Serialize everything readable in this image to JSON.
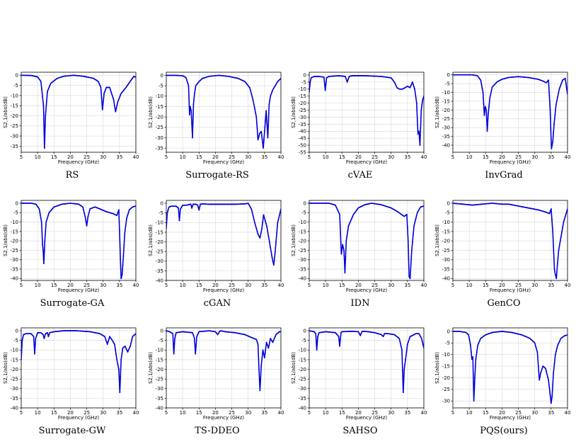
{
  "chart_data": [
    {
      "name": "RS",
      "type": "line",
      "ylabel": "S2,1/abs(dB)",
      "xlabel": "Frequency (GHz)",
      "xlim": [
        5,
        40
      ],
      "ylim": [
        -38,
        1.5
      ],
      "xticks": [
        5,
        10,
        15,
        20,
        25,
        30,
        35,
        40
      ],
      "yticks": [
        0,
        -5,
        -10,
        -15,
        -20,
        -25,
        -30,
        -35
      ],
      "grid": true,
      "color": "#0000dd",
      "x": [
        5,
        8,
        10,
        11,
        11.8,
        12.1,
        12.4,
        13,
        14,
        16,
        18,
        21,
        24,
        27,
        28.5,
        29.3,
        29.8,
        30.3,
        31,
        32,
        33.2,
        33.8,
        34.5,
        35.5,
        37,
        38.5,
        39.4,
        40
      ],
      "y": [
        0,
        -0.1,
        -0.8,
        -3,
        -15,
        -36,
        -20,
        -8,
        -4,
        -1.5,
        -0.5,
        0,
        -0.5,
        -1.5,
        -3,
        -6,
        -17,
        -9,
        -6,
        -6,
        -12,
        -18,
        -13,
        -9,
        -6,
        -2.5,
        -0.5,
        -1
      ]
    },
    {
      "name": "Surrogate-RS",
      "type": "line",
      "ylabel": "S2,1/abs(dB)",
      "xlabel": "Frequency (GHz)",
      "xlim": [
        5,
        40
      ],
      "ylim": [
        -37,
        1.5
      ],
      "xticks": [
        5,
        10,
        15,
        20,
        25,
        30,
        35,
        40
      ],
      "yticks": [
        0,
        -5,
        -10,
        -15,
        -20,
        -25,
        -30,
        -35
      ],
      "grid": true,
      "color": "#0000dd",
      "x": [
        5,
        8,
        10,
        11,
        11.8,
        12.1,
        12.3,
        12.6,
        13,
        13.3,
        13.6,
        14,
        15,
        16,
        18,
        21,
        24,
        27,
        29,
        30.5,
        31.5,
        32.5,
        33,
        33.5,
        34,
        34.6,
        35,
        35.5,
        36,
        36.4,
        36.8,
        37.5,
        39,
        40
      ],
      "y": [
        0,
        0,
        -0.2,
        -1,
        -5,
        -19,
        -15,
        -17,
        -30,
        -14,
        -9,
        -5,
        -3,
        -1.5,
        -0.5,
        0,
        -0.5,
        -1.5,
        -3,
        -6,
        -12,
        -20,
        -31,
        -28,
        -27,
        -35,
        -27,
        -17,
        -30,
        -14,
        -10,
        -7,
        -3,
        -1.5
      ]
    },
    {
      "name": "cVAE",
      "type": "line",
      "ylabel": "S2,1/abs(dB)",
      "xlabel": "Frequency (GHz)",
      "xlim": [
        5,
        40
      ],
      "ylim": [
        -55,
        2
      ],
      "xticks": [
        5,
        10,
        15,
        20,
        25,
        30,
        35,
        40
      ],
      "yticks": [
        0,
        -5,
        -10,
        -15,
        -20,
        -25,
        -30,
        -35,
        -40,
        -45,
        -50,
        -55
      ],
      "grid": true,
      "color": "#0000dd",
      "x": [
        5,
        5.3,
        5.6,
        6.5,
        8,
        9.5,
        9.9,
        10.3,
        11,
        14,
        16,
        16.6,
        17.2,
        18,
        22,
        27,
        30,
        31,
        31.8,
        32.5,
        33.5,
        35,
        35.8,
        36.5,
        37.2,
        37.8,
        38.2,
        38.5,
        38.8,
        39.2,
        39.6,
        40
      ],
      "y": [
        -12,
        -5,
        -2,
        -1,
        -1,
        -1.5,
        -11,
        -2,
        -1,
        -0.5,
        -1,
        -5,
        -1,
        -0.5,
        -0.5,
        -1,
        -2,
        -5,
        -9,
        -10,
        -10,
        -8,
        -9,
        -5,
        -10,
        -20,
        -42,
        -40,
        -50,
        -25,
        -18,
        -15
      ]
    },
    {
      "name": "InvGrad",
      "type": "line",
      "ylabel": "S2,1/abs(dB)",
      "xlabel": "Frequency (GHz)",
      "xlim": [
        5,
        40
      ],
      "ylim": [
        -44,
        1.5
      ],
      "xticks": [
        5,
        10,
        15,
        20,
        25,
        30,
        35,
        40
      ],
      "yticks": [
        0,
        -5,
        -10,
        -15,
        -20,
        -25,
        -30,
        -35,
        -40
      ],
      "grid": true,
      "color": "#0000dd",
      "x": [
        5,
        8,
        11,
        12.5,
        13.5,
        14.2,
        14.6,
        14.9,
        15.2,
        15.5,
        15.8,
        16.3,
        17,
        18.5,
        20,
        22,
        25,
        28,
        31,
        32.5,
        33.5,
        34.2,
        34.7,
        35.1,
        35.5,
        35.9,
        36.5,
        37.5,
        38.5,
        39.3,
        40
      ],
      "y": [
        0,
        0,
        0,
        -0.5,
        -3,
        -10,
        -23,
        -18,
        -20,
        -32,
        -22,
        -13,
        -7,
        -4,
        -2.5,
        -1.5,
        -1,
        -1.5,
        -2.5,
        -3.5,
        -4.5,
        -3,
        -20,
        -42,
        -38,
        -28,
        -17,
        -8,
        -3,
        -2,
        -11
      ]
    },
    {
      "name": "Surrogate-GA",
      "type": "line",
      "ylabel": "S2,1/abs(dB)",
      "xlabel": "Frequency (GHz)",
      "xlim": [
        5,
        40
      ],
      "ylim": [
        -41,
        1.5
      ],
      "xticks": [
        5,
        10,
        15,
        20,
        25,
        30,
        35,
        40
      ],
      "yticks": [
        0,
        -5,
        -10,
        -15,
        -20,
        -25,
        -30,
        -35,
        -40
      ],
      "grid": true,
      "color": "#0000dd",
      "x": [
        5,
        8,
        9.5,
        10.5,
        11.2,
        11.5,
        11.7,
        11.9,
        12.2,
        12.6,
        13.5,
        15,
        17.5,
        20,
        22.5,
        23.8,
        24.5,
        25,
        25.4,
        26,
        27.5,
        29,
        31,
        33,
        34.2,
        34.8,
        35.2,
        35.5,
        35.8,
        36.2,
        36.6,
        37.2,
        38,
        39,
        40
      ],
      "y": [
        0,
        0,
        -0.5,
        -3,
        -10,
        -22,
        -25,
        -32,
        -20,
        -10,
        -5,
        -2,
        -0.5,
        0,
        -0.5,
        -2,
        -7,
        -12,
        -7,
        -3,
        -2,
        -3,
        -4.5,
        -5.5,
        -6.5,
        -3.5,
        -25,
        -40,
        -38,
        -28,
        -16,
        -8,
        -3.5,
        -2,
        -1.5
      ]
    },
    {
      "name": "cGAN",
      "type": "line",
      "ylabel": "S2,1/abs(dB)",
      "xlabel": "Frequency (GHz)",
      "xlim": [
        5,
        40
      ],
      "ylim": [
        -40,
        1.5
      ],
      "xticks": [
        5,
        10,
        15,
        20,
        25,
        30,
        35,
        40
      ],
      "yticks": [
        0,
        -5,
        -10,
        -15,
        -20,
        -25,
        -30,
        -35,
        -40
      ],
      "grid": true,
      "color": "#0000dd",
      "x": [
        5,
        5.3,
        5.8,
        6.5,
        8,
        8.7,
        9,
        9.3,
        10,
        11,
        12.5,
        12.8,
        13.2,
        14,
        14.6,
        15,
        15.4,
        16,
        18,
        22,
        26,
        29,
        30,
        31,
        32,
        33,
        33.6,
        34.2,
        34.7,
        35.2,
        35.7,
        36.5,
        37.3,
        37.8,
        38.2,
        39,
        40
      ],
      "y": [
        -13,
        -5,
        -2,
        -1.5,
        -1.5,
        -2.5,
        -9,
        -3,
        -1,
        -1,
        -0.5,
        -2.5,
        -0.5,
        -0.5,
        -1,
        -3.5,
        -0.5,
        -0.3,
        -0.5,
        -0.5,
        -0.5,
        -0.3,
        0,
        -3,
        -10,
        -16,
        -18,
        -13,
        -6,
        -9,
        -12,
        -20,
        -28,
        -32,
        -26,
        -10,
        -3
      ]
    },
    {
      "name": "IDN",
      "type": "line",
      "ylabel": "S2,1/abs(dB)",
      "xlabel": "Frequency (GHz)",
      "xlim": [
        5,
        40
      ],
      "ylim": [
        -41,
        1.5
      ],
      "xticks": [
        5,
        10,
        15,
        20,
        25,
        30,
        35,
        40
      ],
      "yticks": [
        0,
        -5,
        -10,
        -15,
        -20,
        -25,
        -30,
        -35,
        -40
      ],
      "grid": true,
      "color": "#0000dd",
      "x": [
        5,
        8,
        11,
        13,
        14.3,
        14.8,
        15.2,
        15.6,
        15.9,
        16.3,
        17,
        18.5,
        20,
        22,
        24,
        27,
        30,
        32,
        34,
        34.8,
        35.2,
        35.5,
        35.8,
        36.3,
        37,
        38,
        39,
        40
      ],
      "y": [
        0,
        0,
        0,
        -1,
        -6,
        -27,
        -22,
        -25,
        -37,
        -20,
        -12,
        -6,
        -2.5,
        -0.8,
        0,
        -0.8,
        -2.5,
        -4.5,
        -7,
        -6,
        -20,
        -39,
        -40,
        -25,
        -12,
        -5,
        -2,
        -1.5
      ]
    },
    {
      "name": "GenCO",
      "type": "line",
      "ylabel": "S2,1/abs(dB)",
      "xlabel": "Frequency (GHz)",
      "xlim": [
        5,
        40
      ],
      "ylim": [
        -41,
        1.5
      ],
      "xticks": [
        5,
        10,
        15,
        20,
        25,
        30,
        35,
        40
      ],
      "yticks": [
        0,
        -5,
        -10,
        -15,
        -20,
        -25,
        -30,
        -35,
        -40
      ],
      "grid": true,
      "color": "#0000dd",
      "x": [
        5,
        8,
        11,
        14,
        17,
        20,
        22,
        25,
        28,
        31,
        33,
        34.5,
        35,
        35.5,
        36,
        36.3,
        36.6,
        36.9,
        37.3,
        38,
        38.8,
        40
      ],
      "y": [
        0,
        -0.5,
        -1,
        -0.5,
        0,
        -0.5,
        -0.5,
        -1.5,
        -2.5,
        -3.5,
        -4.5,
        -5.5,
        -3,
        -15,
        -35,
        -38,
        -40,
        -33,
        -25,
        -18,
        -10,
        -3
      ]
    },
    {
      "name": "Surrogate-GW",
      "type": "line",
      "ylabel": "S2,1/abs(dB)",
      "xlabel": "Frequency (GHz)",
      "xlim": [
        5,
        40
      ],
      "ylim": [
        -40,
        1.5
      ],
      "xticks": [
        5,
        10,
        15,
        20,
        25,
        30,
        35,
        40
      ],
      "yticks": [
        0,
        -5,
        -10,
        -15,
        -20,
        -25,
        -30,
        -35,
        -40
      ],
      "grid": true,
      "color": "#0000dd",
      "x": [
        5,
        5.3,
        5.7,
        6.5,
        8,
        8.8,
        9.1,
        9.4,
        10,
        11,
        11.7,
        12,
        12.4,
        13,
        13.3,
        13.7,
        15,
        18,
        22,
        26,
        29,
        30.5,
        31.3,
        32,
        32.8,
        33.5,
        34.2,
        34.8,
        35.1,
        35.5,
        36,
        36.7,
        37.5,
        38.3,
        39,
        40
      ],
      "y": [
        -15,
        -5,
        -2,
        -1.5,
        -1.5,
        -3,
        -12,
        -4,
        -1,
        -1,
        -2,
        -4,
        -1.5,
        -1,
        -3,
        -1,
        -0.5,
        0,
        0,
        -0.5,
        -1.5,
        -3,
        -7,
        -3,
        -5,
        -7,
        -15,
        -20,
        -32,
        -15,
        -9,
        -8,
        -11,
        -8,
        -3,
        -1.5
      ]
    },
    {
      "name": "TS-DDEO",
      "type": "line",
      "ylabel": "S2,1/abs(dB)",
      "xlabel": "Frequency (GHz)",
      "xlim": [
        5,
        40
      ],
      "ylim": [
        -40,
        1.5
      ],
      "xticks": [
        5,
        10,
        15,
        20,
        25,
        30,
        35,
        40
      ],
      "yticks": [
        0,
        -5,
        -10,
        -15,
        -20,
        -25,
        -30,
        -35,
        -40
      ],
      "grid": true,
      "color": "#0000dd",
      "x": [
        5,
        6,
        7,
        7.3,
        7.6,
        8,
        10,
        13,
        13.6,
        13.9,
        14.3,
        15,
        18,
        20,
        20.7,
        21.2,
        21.6,
        23,
        26,
        29,
        31,
        32.5,
        33,
        33.3,
        33.6,
        34,
        34.5,
        35,
        35.6,
        36.2,
        36.8,
        37.5,
        38.5,
        39.5,
        40
      ],
      "y": [
        0,
        -0.5,
        -1.5,
        -12,
        -4,
        -1,
        -0.5,
        -1,
        -4,
        -12,
        -3,
        -0.5,
        0,
        -0.5,
        -2,
        -0.5,
        0,
        -0.5,
        -1,
        -2,
        -3.5,
        -4.5,
        -7,
        -20,
        -31,
        -18,
        -10,
        -14,
        -6,
        -9,
        -4,
        -6,
        -2,
        -0.5,
        -0.5
      ]
    },
    {
      "name": "SAHSO",
      "type": "line",
      "ylabel": "S2,1/abs(dB)",
      "xlabel": "Frequency (GHz)",
      "xlim": [
        5,
        40
      ],
      "ylim": [
        -40,
        1.5
      ],
      "xticks": [
        5,
        10,
        15,
        20,
        25,
        30,
        35,
        40
      ],
      "yticks": [
        0,
        -5,
        -10,
        -15,
        -20,
        -25,
        -30,
        -35,
        -40
      ],
      "grid": true,
      "color": "#0000dd",
      "x": [
        5,
        6.5,
        7,
        7.3,
        7.6,
        8,
        10,
        13,
        14,
        14.3,
        14.7,
        15,
        18,
        20,
        20.6,
        21.1,
        21.5,
        23,
        25,
        27,
        27.6,
        28,
        29,
        31,
        32.5,
        33.3,
        33.7,
        34,
        34.4,
        35,
        35.8,
        36.5,
        37.5,
        38.5,
        39.3,
        40
      ],
      "y": [
        0,
        -0.5,
        -1.5,
        -10,
        -3,
        -1,
        -0.5,
        -1,
        -3,
        -8,
        -1,
        -0.5,
        -0.3,
        -0.5,
        -2.5,
        -0.5,
        -0.3,
        -0.5,
        -1,
        -2,
        -3,
        -1.5,
        -1.5,
        -2,
        -4,
        -10,
        -32,
        -20,
        -15,
        -7,
        -3,
        -2.5,
        -1.5,
        -1.5,
        -4,
        -9
      ]
    },
    {
      "name": "PQS(ours)",
      "type": "line",
      "ylabel": "S2,1/abs(dB)",
      "xlabel": "Frequency (GHz)",
      "xlim": [
        5,
        40
      ],
      "ylim": [
        -33,
        1.5
      ],
      "xticks": [
        5,
        10,
        15,
        20,
        25,
        30,
        35,
        40
      ],
      "yticks": [
        0,
        -5,
        -10,
        -15,
        -20,
        -25,
        -30
      ],
      "grid": true,
      "color": "#0000dd",
      "x": [
        5,
        7,
        9,
        9.8,
        10.4,
        10.8,
        11.1,
        11.4,
        11.7,
        12,
        12.6,
        13.5,
        15,
        17,
        20,
        23,
        26,
        28.5,
        30,
        30.8,
        31.4,
        31.8,
        32.5,
        33.3,
        34.2,
        35,
        35.3,
        35.7,
        36.3,
        37,
        38,
        39,
        40
      ],
      "y": [
        0,
        0,
        -0.5,
        -1.5,
        -6,
        -12,
        -11,
        -30,
        -20,
        -12,
        -6,
        -3,
        -1.5,
        -0.5,
        0,
        -0.5,
        -1.5,
        -3,
        -5,
        -9,
        -21,
        -18,
        -15,
        -16,
        -21,
        -31,
        -28,
        -18,
        -10,
        -6,
        -3,
        -2,
        -1.5
      ]
    }
  ]
}
